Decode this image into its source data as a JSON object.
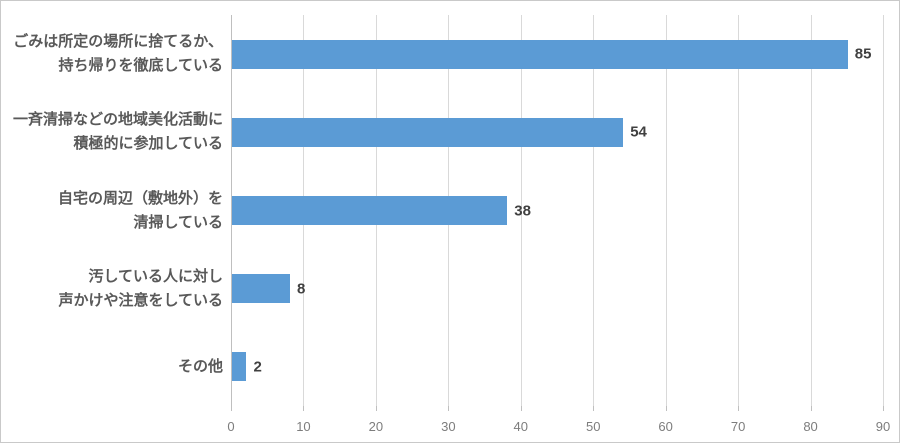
{
  "chart_data": {
    "type": "bar",
    "orientation": "horizontal",
    "title": "",
    "xlabel": "",
    "ylabel": "",
    "categories": [
      "ごみは所定の場所に捨てるか、\n持ち帰りを徹底している",
      "一斉清掃などの地域美化活動に\n積極的に参加している",
      "自宅の周辺（敷地外）を\n清掃している",
      "汚している人に対し\n声かけや注意をしている",
      "その他"
    ],
    "values": [
      85,
      54,
      38,
      8,
      2
    ],
    "value_labels": [
      "85",
      "54",
      "38",
      "8",
      "2"
    ],
    "x_ticks": [
      "0",
      "10",
      "20",
      "30",
      "40",
      "50",
      "60",
      "70",
      "80",
      "90"
    ],
    "xlim": [
      0,
      90
    ],
    "grid": true,
    "legend": false,
    "bar_color": "#5b9bd5",
    "gridline_color": "#d9d9d9",
    "axis_color": "#bfbfbf",
    "category_label_color": "#595959",
    "value_label_color": "#404040",
    "tick_label_color": "#7d7d7d"
  }
}
